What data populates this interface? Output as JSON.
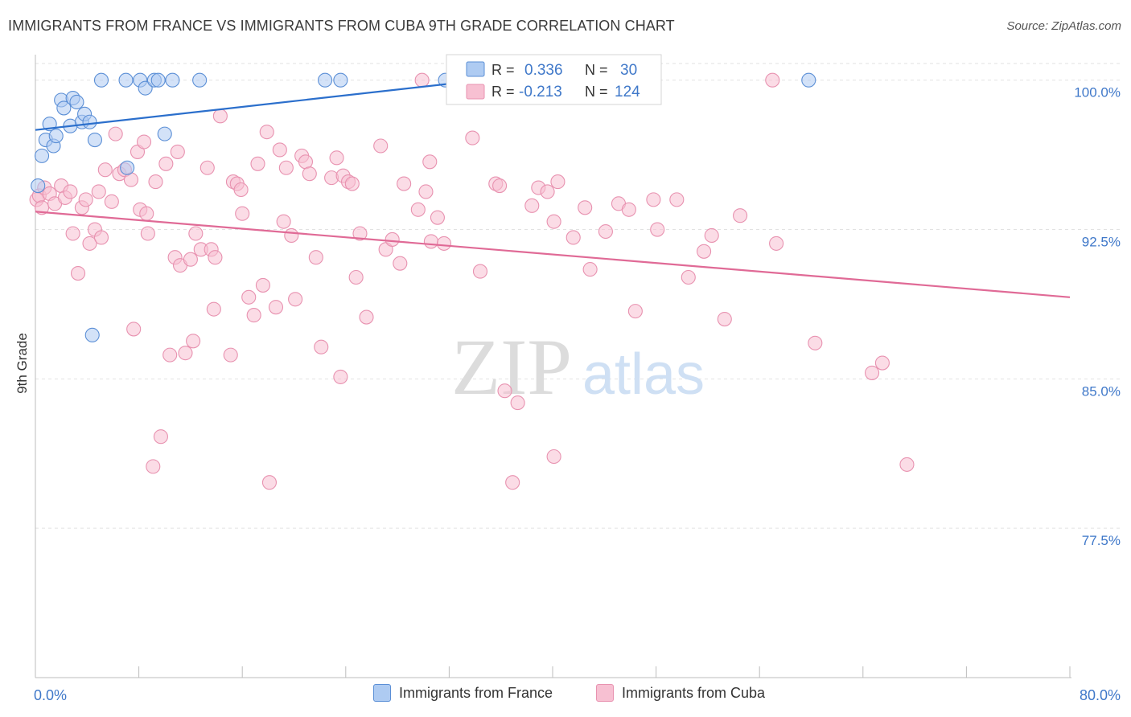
{
  "header": {
    "title": "IMMIGRANTS FROM FRANCE VS IMMIGRANTS FROM CUBA 9TH GRADE CORRELATION CHART",
    "source": "Source: ZipAtlas.com"
  },
  "watermark": {
    "part1": "ZIP",
    "part2": "atlas"
  },
  "stats_box": {
    "rows": [
      {
        "r_label": "R =",
        "r_value": "0.336",
        "n_label": "N =",
        "n_value": "30"
      },
      {
        "r_label": "R =",
        "r_value": "-0.213",
        "n_label": "N =",
        "n_value": "124"
      }
    ]
  },
  "legend": {
    "items": [
      {
        "label": "Immigrants from France"
      },
      {
        "label": "Immigrants from Cuba"
      }
    ]
  },
  "colors": {
    "france_fill": "#aecbf2",
    "france_stroke": "#5b8fd6",
    "france_line": "#2b6fcc",
    "cuba_fill": "#f7c0d2",
    "cuba_stroke": "#e892b0",
    "cuba_line": "#e06a96",
    "tick_text": "#3f78c9",
    "grid": "#e2e2e2",
    "axis": "#bdbdbd"
  },
  "chart_data": {
    "type": "scatter",
    "title": "IMMIGRANTS FROM FRANCE VS IMMIGRANTS FROM CUBA 9TH GRADE CORRELATION CHART",
    "xlabel": "",
    "ylabel": "9th Grade",
    "xlim": [
      0,
      80
    ],
    "ylim": [
      70.0,
      101.2
    ],
    "x_tick_labels": [
      {
        "value": 0,
        "label": "0.0%"
      },
      {
        "value": 80,
        "label": "80.0%"
      }
    ],
    "y_ticks": [
      {
        "value": 100.0,
        "label": "100.0%"
      },
      {
        "value": 92.5,
        "label": "92.5%"
      },
      {
        "value": 85.0,
        "label": "85.0%"
      },
      {
        "value": 77.5,
        "label": "77.5%"
      }
    ],
    "x_minor_ticks": [
      8,
      16,
      24,
      32,
      40,
      48,
      56,
      64,
      72,
      80
    ],
    "series": [
      {
        "name": "Immigrants from France",
        "stats": {
          "R": 0.336,
          "N": 30
        },
        "trend": {
          "x0": 0,
          "y0": 97.5,
          "x1": 34.5,
          "y1": 100.0
        },
        "points": [
          [
            0.2,
            94.7
          ],
          [
            0.5,
            96.2
          ],
          [
            0.8,
            97.0
          ],
          [
            1.1,
            97.8
          ],
          [
            1.4,
            96.7
          ],
          [
            1.6,
            97.2
          ],
          [
            2.0,
            99.0
          ],
          [
            2.2,
            98.6
          ],
          [
            2.7,
            97.7
          ],
          [
            2.9,
            99.1
          ],
          [
            3.2,
            98.9
          ],
          [
            3.6,
            97.9
          ],
          [
            3.8,
            98.3
          ],
          [
            4.2,
            97.9
          ],
          [
            4.6,
            97.0
          ],
          [
            4.4,
            87.2
          ],
          [
            5.1,
            100.0
          ],
          [
            7.1,
            95.6
          ],
          [
            7.0,
            100.0
          ],
          [
            8.1,
            100.0
          ],
          [
            8.5,
            99.6
          ],
          [
            9.2,
            100.0
          ],
          [
            9.5,
            100.0
          ],
          [
            10.0,
            97.3
          ],
          [
            10.6,
            100.0
          ],
          [
            12.7,
            100.0
          ],
          [
            22.4,
            100.0
          ],
          [
            23.6,
            100.0
          ],
          [
            31.7,
            100.0
          ],
          [
            59.8,
            100.0
          ]
        ]
      },
      {
        "name": "Immigrants from Cuba",
        "stats": {
          "R": -0.213,
          "N": 124
        },
        "trend": {
          "x0": 0,
          "y0": 93.4,
          "x1": 80,
          "y1": 89.1
        },
        "points": [
          [
            0.1,
            94.0
          ],
          [
            0.3,
            94.2
          ],
          [
            0.5,
            93.6
          ],
          [
            0.7,
            94.6
          ],
          [
            1.1,
            94.3
          ],
          [
            1.5,
            93.8
          ],
          [
            2.0,
            94.7
          ],
          [
            2.3,
            94.1
          ],
          [
            2.7,
            94.4
          ],
          [
            2.9,
            92.3
          ],
          [
            3.3,
            90.3
          ],
          [
            3.6,
            93.6
          ],
          [
            3.9,
            94.0
          ],
          [
            4.2,
            91.8
          ],
          [
            4.6,
            92.5
          ],
          [
            4.9,
            94.4
          ],
          [
            5.1,
            92.1
          ],
          [
            5.4,
            95.5
          ],
          [
            5.9,
            93.9
          ],
          [
            6.2,
            97.3
          ],
          [
            6.5,
            95.3
          ],
          [
            6.9,
            95.5
          ],
          [
            7.4,
            95.0
          ],
          [
            7.6,
            87.5
          ],
          [
            7.9,
            96.4
          ],
          [
            8.1,
            93.5
          ],
          [
            8.4,
            96.9
          ],
          [
            8.7,
            92.3
          ],
          [
            9.1,
            80.6
          ],
          [
            9.3,
            94.9
          ],
          [
            9.7,
            82.1
          ],
          [
            10.1,
            95.8
          ],
          [
            10.4,
            86.2
          ],
          [
            10.8,
            91.1
          ],
          [
            11.0,
            96.4
          ],
          [
            11.2,
            90.7
          ],
          [
            11.6,
            86.3
          ],
          [
            12.0,
            91.0
          ],
          [
            12.2,
            86.9
          ],
          [
            12.4,
            92.3
          ],
          [
            12.8,
            91.5
          ],
          [
            13.3,
            95.6
          ],
          [
            13.6,
            91.5
          ],
          [
            13.8,
            88.5
          ],
          [
            13.9,
            91.1
          ],
          [
            14.3,
            98.2
          ],
          [
            15.1,
            86.2
          ],
          [
            15.3,
            94.9
          ],
          [
            15.6,
            94.8
          ],
          [
            15.9,
            94.5
          ],
          [
            16.0,
            93.3
          ],
          [
            16.5,
            89.1
          ],
          [
            16.9,
            88.2
          ],
          [
            17.2,
            95.8
          ],
          [
            17.6,
            89.7
          ],
          [
            17.9,
            97.4
          ],
          [
            18.1,
            79.8
          ],
          [
            18.6,
            88.6
          ],
          [
            18.9,
            96.5
          ],
          [
            19.2,
            92.9
          ],
          [
            19.4,
            95.6
          ],
          [
            19.8,
            92.2
          ],
          [
            20.1,
            89.0
          ],
          [
            20.6,
            96.2
          ],
          [
            20.9,
            95.9
          ],
          [
            21.2,
            95.3
          ],
          [
            21.7,
            91.1
          ],
          [
            22.1,
            86.6
          ],
          [
            22.9,
            95.1
          ],
          [
            23.3,
            96.1
          ],
          [
            23.6,
            85.1
          ],
          [
            23.8,
            95.2
          ],
          [
            24.2,
            94.9
          ],
          [
            24.5,
            94.8
          ],
          [
            24.8,
            90.1
          ],
          [
            25.1,
            92.3
          ],
          [
            25.6,
            88.1
          ],
          [
            26.7,
            96.7
          ],
          [
            27.1,
            91.5
          ],
          [
            27.6,
            92.0
          ],
          [
            28.2,
            90.8
          ],
          [
            28.5,
            94.8
          ],
          [
            29.6,
            93.5
          ],
          [
            29.9,
            100.0
          ],
          [
            30.2,
            94.4
          ],
          [
            30.5,
            95.9
          ],
          [
            30.6,
            91.9
          ],
          [
            31.1,
            93.1
          ],
          [
            31.6,
            91.8
          ],
          [
            33.8,
            97.1
          ],
          [
            34.4,
            90.4
          ],
          [
            35.6,
            94.8
          ],
          [
            35.9,
            94.7
          ],
          [
            36.3,
            84.4
          ],
          [
            36.9,
            79.8
          ],
          [
            37.3,
            83.8
          ],
          [
            38.4,
            93.7
          ],
          [
            38.9,
            94.6
          ],
          [
            39.6,
            94.4
          ],
          [
            40.1,
            92.9
          ],
          [
            40.1,
            81.1
          ],
          [
            40.4,
            94.9
          ],
          [
            41.6,
            92.1
          ],
          [
            42.5,
            93.6
          ],
          [
            42.9,
            90.5
          ],
          [
            44.1,
            92.4
          ],
          [
            45.1,
            93.8
          ],
          [
            45.9,
            93.5
          ],
          [
            46.4,
            88.4
          ],
          [
            47.8,
            94.0
          ],
          [
            48.1,
            92.5
          ],
          [
            49.6,
            94.0
          ],
          [
            50.5,
            90.1
          ],
          [
            51.7,
            91.4
          ],
          [
            52.3,
            92.2
          ],
          [
            53.3,
            88.0
          ],
          [
            54.5,
            93.2
          ],
          [
            57.0,
            100.0
          ],
          [
            57.3,
            91.8
          ],
          [
            60.3,
            86.8
          ],
          [
            64.7,
            85.3
          ],
          [
            65.5,
            85.8
          ],
          [
            67.4,
            80.7
          ],
          [
            8.6,
            93.3
          ]
        ]
      }
    ]
  }
}
